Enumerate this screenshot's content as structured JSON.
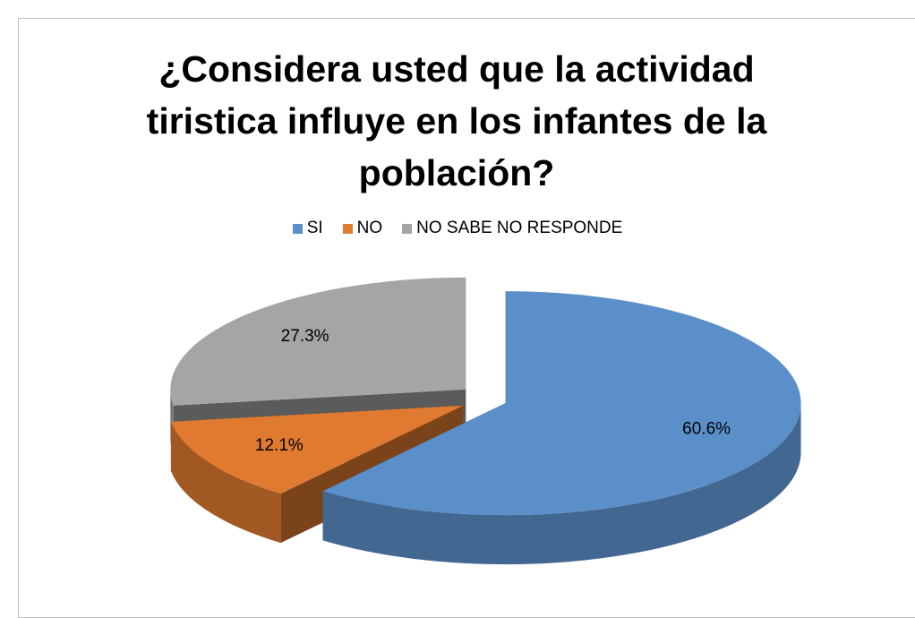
{
  "chart_data": {
    "type": "pie",
    "title": "¿Considera usted  que la actividad tiristica influye en los infantes de la población?",
    "categories": [
      "SI",
      "NO",
      "NO SABE NO RESPONDE"
    ],
    "values": [
      60.6,
      12.1,
      27.3
    ],
    "value_labels": [
      "60.6%",
      "12.1%",
      "27.3%"
    ],
    "colors": [
      "#5b8fca",
      "#e07a30",
      "#a5a5a5"
    ],
    "legend": "top"
  }
}
